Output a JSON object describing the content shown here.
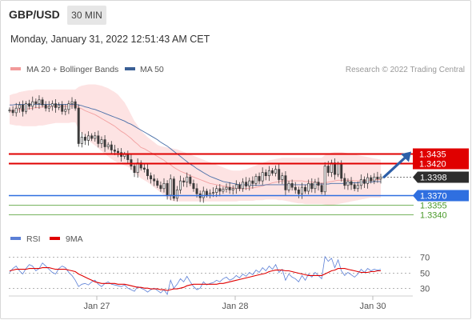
{
  "header": {
    "symbol": "GBP/USD",
    "interval": "30 MIN",
    "datetime": "Monday, January 31, 2022 12:51:43 AM CET"
  },
  "legend": {
    "ma20_label": "MA 20 + Bollinger Bands",
    "ma50_label": "MA 50",
    "credit": "Research © 2022 Trading Central",
    "rsi_label": "RSI",
    "rsi9_label": "9MA"
  },
  "colors": {
    "candle": "#3a3a3a",
    "bollinger_fill": "#fde3e3",
    "ma20": "#f2a0a0",
    "ma50": "#4a6fa8",
    "resistance": "#e00000",
    "pivot_label": "#2d2d2d",
    "support": "#2f6fe0",
    "target": "#4a9a2a",
    "arrow": "#2d5fa8",
    "rsi": "#5b7fd6",
    "rsi9": "#e00000"
  },
  "chart_data": [
    {
      "type": "candlestick",
      "x_ticks": [
        "Jan 27",
        "Jan 28",
        "Jan 30"
      ],
      "ylim": [
        1.3325,
        1.3555
      ],
      "levels": [
        {
          "value": 1.3435,
          "label": "1.3435",
          "kind": "resistance"
        },
        {
          "value": 1.342,
          "label": "1.3420",
          "kind": "resistance"
        },
        {
          "value": 1.3398,
          "label": "1.3398",
          "kind": "pivot"
        },
        {
          "value": 1.337,
          "label": "1.3370",
          "kind": "support"
        },
        {
          "value": 1.3355,
          "label": "1.3355",
          "kind": "target"
        },
        {
          "value": 1.334,
          "label": "1.3340",
          "kind": "target"
        }
      ],
      "close": [
        1.3502,
        1.3498,
        1.3505,
        1.351,
        1.35,
        1.3512,
        1.3508,
        1.3515,
        1.3512,
        1.3518,
        1.351,
        1.3505,
        1.3508,
        1.3512,
        1.3506,
        1.351,
        1.35,
        1.3503,
        1.3512,
        1.3515,
        1.3505,
        1.345,
        1.346,
        1.3455,
        1.3462,
        1.3458,
        1.3462,
        1.345,
        1.3456,
        1.3445,
        1.3448,
        1.344,
        1.3438,
        1.3436,
        1.343,
        1.3433,
        1.3425,
        1.3415,
        1.3405,
        1.342,
        1.3412,
        1.341,
        1.34,
        1.3395,
        1.3392,
        1.3385,
        1.338,
        1.3388,
        1.337,
        1.3395,
        1.3365,
        1.3378,
        1.3392,
        1.339,
        1.3398,
        1.3388,
        1.338,
        1.3372,
        1.3366,
        1.3376,
        1.337,
        1.3373,
        1.3374,
        1.338,
        1.3376,
        1.3379,
        1.3382,
        1.3378,
        1.338,
        1.3386,
        1.338,
        1.339,
        1.3384,
        1.3392,
        1.3388,
        1.3399,
        1.3392,
        1.3405,
        1.34,
        1.3408,
        1.3404,
        1.341,
        1.3394,
        1.34,
        1.3378,
        1.3388,
        1.3382,
        1.3378,
        1.3372,
        1.3382,
        1.3376,
        1.3388,
        1.338,
        1.339,
        1.3385,
        1.3375,
        1.3415,
        1.3405,
        1.342,
        1.3402,
        1.3418,
        1.3396,
        1.3385,
        1.3391,
        1.3386,
        1.338,
        1.3385,
        1.3394,
        1.3388,
        1.3397,
        1.3392,
        1.3398,
        1.3395,
        1.3398
      ],
      "ma20": [
        1.35,
        1.3501,
        1.3502,
        1.3503,
        1.3503,
        1.3504,
        1.3504,
        1.3505,
        1.3506,
        1.3506,
        1.3507,
        1.3507,
        1.3507,
        1.3508,
        1.3508,
        1.3508,
        1.3508,
        1.3508,
        1.3508,
        1.3509,
        1.3509,
        1.3506,
        1.3504,
        1.3501,
        1.3499,
        1.3497,
        1.3495,
        1.3492,
        1.3489,
        1.3486,
        1.3483,
        1.348,
        1.3477,
        1.3473,
        1.3469,
        1.3466,
        1.3462,
        1.3458,
        1.3453,
        1.3449,
        1.3444,
        1.3442,
        1.3439,
        1.3436,
        1.3433,
        1.343,
        1.3427,
        1.3424,
        1.342,
        1.3417,
        1.3413,
        1.341,
        1.3407,
        1.3405,
        1.3403,
        1.34,
        1.3398,
        1.3396,
        1.3394,
        1.3392,
        1.339,
        1.3388,
        1.3387,
        1.3386,
        1.3385,
        1.3384,
        1.3383,
        1.3382,
        1.3381,
        1.3381,
        1.338,
        1.338,
        1.338,
        1.3381,
        1.3381,
        1.3382,
        1.3383,
        1.3384,
        1.3386,
        1.3387,
        1.3389,
        1.339,
        1.3391,
        1.3392,
        1.3392,
        1.3392,
        1.3392,
        1.3392,
        1.3392,
        1.3392,
        1.3391,
        1.3391,
        1.339,
        1.339,
        1.3389,
        1.3388,
        1.3389,
        1.339,
        1.3391,
        1.3392,
        1.3393,
        1.3393,
        1.3393,
        1.3393,
        1.3393,
        1.3392,
        1.3392,
        1.3392,
        1.3392,
        1.3393,
        1.3393,
        1.3394,
        1.3394,
        1.3394
      ],
      "bb_upper": [
        1.3525,
        1.3527,
        1.3528,
        1.353,
        1.3531,
        1.3532,
        1.3533,
        1.3533,
        1.3534,
        1.3534,
        1.3534,
        1.3534,
        1.3534,
        1.3534,
        1.3534,
        1.3534,
        1.3534,
        1.3534,
        1.3534,
        1.3534,
        1.3534,
        1.3538,
        1.354,
        1.3541,
        1.3542,
        1.3542,
        1.3542,
        1.3541,
        1.354,
        1.3538,
        1.3536,
        1.3533,
        1.353,
        1.3526,
        1.352,
        1.3514,
        1.3505,
        1.3495,
        1.3485,
        1.3478,
        1.347,
        1.3465,
        1.346,
        1.3456,
        1.3452,
        1.3448,
        1.3446,
        1.3445,
        1.3444,
        1.3443,
        1.3442,
        1.3441,
        1.3439,
        1.3437,
        1.3435,
        1.3433,
        1.3431,
        1.3429,
        1.3427,
        1.3425,
        1.3423,
        1.3421,
        1.3419,
        1.3417,
        1.3415,
        1.3413,
        1.3411,
        1.3409,
        1.3408,
        1.3408,
        1.3408,
        1.3409,
        1.341,
        1.3412,
        1.3414,
        1.3416,
        1.3418,
        1.342,
        1.3422,
        1.3424,
        1.3425,
        1.3426,
        1.3427,
        1.3428,
        1.3428,
        1.3428,
        1.3428,
        1.3428,
        1.3428,
        1.3428,
        1.3428,
        1.3428,
        1.3428,
        1.3428,
        1.3428,
        1.3428,
        1.3432,
        1.3434,
        1.3436,
        1.3437,
        1.3437,
        1.3437,
        1.3436,
        1.3435,
        1.3434,
        1.3433,
        1.3432,
        1.3431,
        1.343,
        1.3429,
        1.3428,
        1.3427,
        1.3426,
        1.3425
      ],
      "bb_lower": [
        1.348,
        1.3479,
        1.3478,
        1.3478,
        1.3477,
        1.3477,
        1.3477,
        1.3477,
        1.3477,
        1.3478,
        1.3478,
        1.3479,
        1.348,
        1.3481,
        1.3482,
        1.3482,
        1.3482,
        1.3482,
        1.3482,
        1.3483,
        1.3483,
        1.3472,
        1.3466,
        1.346,
        1.3455,
        1.3451,
        1.3447,
        1.3443,
        1.3438,
        1.3434,
        1.343,
        1.3426,
        1.3423,
        1.342,
        1.3418,
        1.3416,
        1.3414,
        1.341,
        1.3405,
        1.3401,
        1.3396,
        1.3393,
        1.339,
        1.3386,
        1.3382,
        1.3378,
        1.3374,
        1.337,
        1.3366,
        1.3362,
        1.336,
        1.336,
        1.336,
        1.336,
        1.336,
        1.336,
        1.336,
        1.336,
        1.336,
        1.336,
        1.336,
        1.336,
        1.336,
        1.336,
        1.336,
        1.336,
        1.336,
        1.336,
        1.336,
        1.336,
        1.3361,
        1.3361,
        1.3361,
        1.3361,
        1.3361,
        1.3362,
        1.3362,
        1.3362,
        1.3363,
        1.3363,
        1.3363,
        1.3363,
        1.3362,
        1.3362,
        1.3361,
        1.336,
        1.3359,
        1.3358,
        1.3357,
        1.3357,
        1.3356,
        1.3356,
        1.3356,
        1.3356,
        1.3356,
        1.3356,
        1.3355,
        1.3354,
        1.3354,
        1.3355,
        1.3356,
        1.3357,
        1.3358,
        1.3359,
        1.336,
        1.3361,
        1.3362,
        1.3363,
        1.3364,
        1.3365,
        1.3366,
        1.3366,
        1.3366,
        1.3366
      ],
      "ma50": [
        1.351,
        1.351,
        1.3511,
        1.3511,
        1.3511,
        1.3511,
        1.3511,
        1.3511,
        1.3511,
        1.3511,
        1.3511,
        1.3511,
        1.3511,
        1.3511,
        1.3511,
        1.3511,
        1.3511,
        1.3511,
        1.3511,
        1.3511,
        1.3511,
        1.351,
        1.3509,
        1.3507,
        1.3506,
        1.3504,
        1.3503,
        1.3501,
        1.3499,
        1.3497,
        1.3495,
        1.3493,
        1.3491,
        1.3489,
        1.3487,
        1.3485,
        1.3482,
        1.348,
        1.3477,
        1.3474,
        1.3471,
        1.3468,
        1.3465,
        1.3462,
        1.3459,
        1.3456,
        1.3452,
        1.3449,
        1.3446,
        1.3442,
        1.3438,
        1.3434,
        1.343,
        1.3426,
        1.3422,
        1.3418,
        1.3415,
        1.3411,
        1.3408,
        1.3405,
        1.3402,
        1.3399,
        1.3397,
        1.3395,
        1.3393,
        1.3391,
        1.339,
        1.3389,
        1.3388,
        1.3387,
        1.3386,
        1.3386,
        1.3386,
        1.3386,
        1.3385,
        1.3385,
        1.3385,
        1.3385,
        1.3386,
        1.3386,
        1.3386,
        1.3386,
        1.3386,
        1.3386,
        1.3386,
        1.3386,
        1.3386,
        1.3386,
        1.3386,
        1.3386,
        1.3386,
        1.3386,
        1.3386,
        1.3386,
        1.3387,
        1.3387,
        1.3387,
        1.3387,
        1.3388,
        1.3388,
        1.3388,
        1.3388,
        1.3388,
        1.3389,
        1.3389,
        1.3389,
        1.3389,
        1.339,
        1.339,
        1.339,
        1.339,
        1.3391,
        1.3391,
        1.3391
      ],
      "forecast_arrow": {
        "from": 1.3398,
        "to": 1.3435
      }
    },
    {
      "type": "line",
      "name": "RSI",
      "ylim": [
        20,
        80
      ],
      "y_ticks": [
        70,
        50,
        30
      ],
      "x_ticks": [
        "Jan 27",
        "Jan 28",
        "Jan 30"
      ],
      "series": [
        {
          "name": "RSI",
          "values": [
            50,
            55,
            58,
            52,
            48,
            55,
            60,
            58,
            52,
            55,
            62,
            58,
            54,
            50,
            48,
            55,
            58,
            56,
            50,
            46,
            40,
            32,
            35,
            36,
            34,
            38,
            40,
            35,
            32,
            36,
            38,
            35,
            34,
            33,
            32,
            34,
            30,
            28,
            26,
            32,
            30,
            28,
            25,
            28,
            30,
            27,
            24,
            28,
            22,
            40,
            30,
            35,
            42,
            38,
            45,
            38,
            32,
            28,
            30,
            38,
            34,
            36,
            37,
            40,
            38,
            42,
            44,
            40,
            42,
            46,
            43,
            48,
            45,
            50,
            47,
            53,
            50,
            56,
            52,
            58,
            54,
            60,
            50,
            54,
            40,
            48,
            44,
            42,
            38,
            46,
            40,
            48,
            44,
            50,
            46,
            42,
            70,
            64,
            68,
            56,
            66,
            52,
            46,
            50,
            47,
            44,
            48,
            54,
            50,
            55,
            52,
            54,
            53,
            54
          ]
        },
        {
          "name": "9MA",
          "values": [
            52,
            53,
            54,
            54,
            54,
            54,
            55,
            55,
            55,
            55,
            56,
            56,
            56,
            55,
            54,
            54,
            54,
            54,
            53,
            52,
            51,
            48,
            46,
            44,
            42,
            40,
            38,
            37,
            36,
            36,
            36,
            36,
            36,
            35,
            35,
            35,
            34,
            33,
            32,
            31,
            31,
            30,
            30,
            29,
            29,
            29,
            28,
            28,
            27,
            28,
            29,
            29,
            30,
            31,
            33,
            34,
            35,
            35,
            35,
            35,
            35,
            35,
            35,
            35,
            36,
            36,
            37,
            38,
            39,
            40,
            41,
            42,
            43,
            44,
            45,
            46,
            47,
            48,
            49,
            51,
            52,
            53,
            53,
            53,
            52,
            52,
            51,
            50,
            49,
            48,
            47,
            46,
            46,
            46,
            46,
            46,
            48,
            50,
            52,
            53,
            55,
            55,
            55,
            54,
            53,
            52,
            51,
            50,
            50,
            50,
            51,
            51,
            52,
            52
          ]
        }
      ]
    }
  ]
}
